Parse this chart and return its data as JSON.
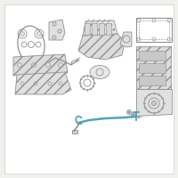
{
  "bg_color": "#f0f0ed",
  "line_color": "#909090",
  "highlight_color": "#4da6b8",
  "fig_width": 2.0,
  "fig_height": 2.0,
  "dpi": 100
}
